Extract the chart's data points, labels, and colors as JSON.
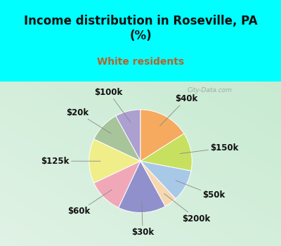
{
  "title": "Income distribution in Roseville, PA\n(%)",
  "subtitle": "White residents",
  "title_color": "#111111",
  "subtitle_color": "#b8622a",
  "bg_top_color": "#00FFFF",
  "chart_bg_left": "#e0f0e8",
  "chart_bg_right": "#d0eae0",
  "labels": [
    "$100k",
    "$20k",
    "$125k",
    "$60k",
    "$30k",
    "$200k",
    "$50k",
    "$150k",
    "$40k"
  ],
  "values": [
    8,
    10,
    14,
    11,
    15,
    4,
    10,
    12,
    16
  ],
  "colors": [
    "#aba0d0",
    "#a8c49a",
    "#f0ee88",
    "#f0a8b8",
    "#9090cc",
    "#f5d8b0",
    "#a8c8e8",
    "#c8e060",
    "#f5aa60"
  ],
  "startangle": 90,
  "label_fontsize": 8.5,
  "label_color": "#111111",
  "title_fontsize": 12,
  "subtitle_fontsize": 10
}
